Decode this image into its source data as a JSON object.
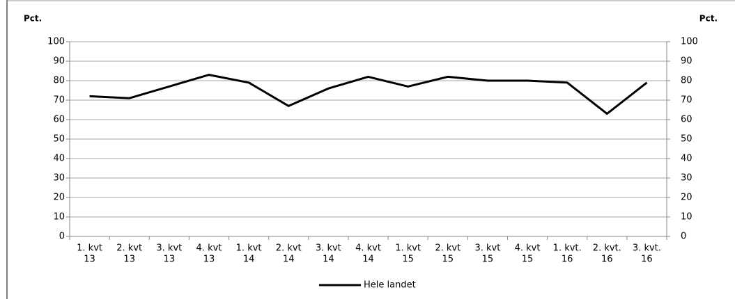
{
  "chart_data": {
    "type": "line",
    "y_label": "Pct.",
    "y2_label": "Pct.",
    "categories": [
      [
        "1. kvt",
        "13"
      ],
      [
        "2. kvt",
        "13"
      ],
      [
        "3. kvt",
        "13"
      ],
      [
        "4. kvt",
        "13"
      ],
      [
        "1. kvt",
        "14"
      ],
      [
        "2. kvt",
        "14"
      ],
      [
        "3. kvt",
        "14"
      ],
      [
        "4. kvt",
        "14"
      ],
      [
        "1. kvt",
        "15"
      ],
      [
        "2. kvt",
        "15"
      ],
      [
        "3. kvt",
        "15"
      ],
      [
        "4. kvt",
        "15"
      ],
      [
        "1. kvt.",
        "16"
      ],
      [
        "2. kvt.",
        "16"
      ],
      [
        "3. kvt.",
        "16"
      ]
    ],
    "series": [
      {
        "name": "Hele landet",
        "color": "#000000",
        "values": [
          72,
          71,
          77,
          83,
          79,
          67,
          76,
          82,
          77,
          82,
          80,
          80,
          79,
          63,
          79
        ]
      }
    ],
    "ylim": [
      0,
      100
    ],
    "yticks": [
      0,
      10,
      20,
      30,
      40,
      50,
      60,
      70,
      80,
      90,
      100
    ],
    "y2lim": [
      0,
      100
    ],
    "y2ticks": [
      0,
      10,
      20,
      30,
      40,
      50,
      60,
      70,
      80,
      90,
      100
    ],
    "grid": true
  }
}
